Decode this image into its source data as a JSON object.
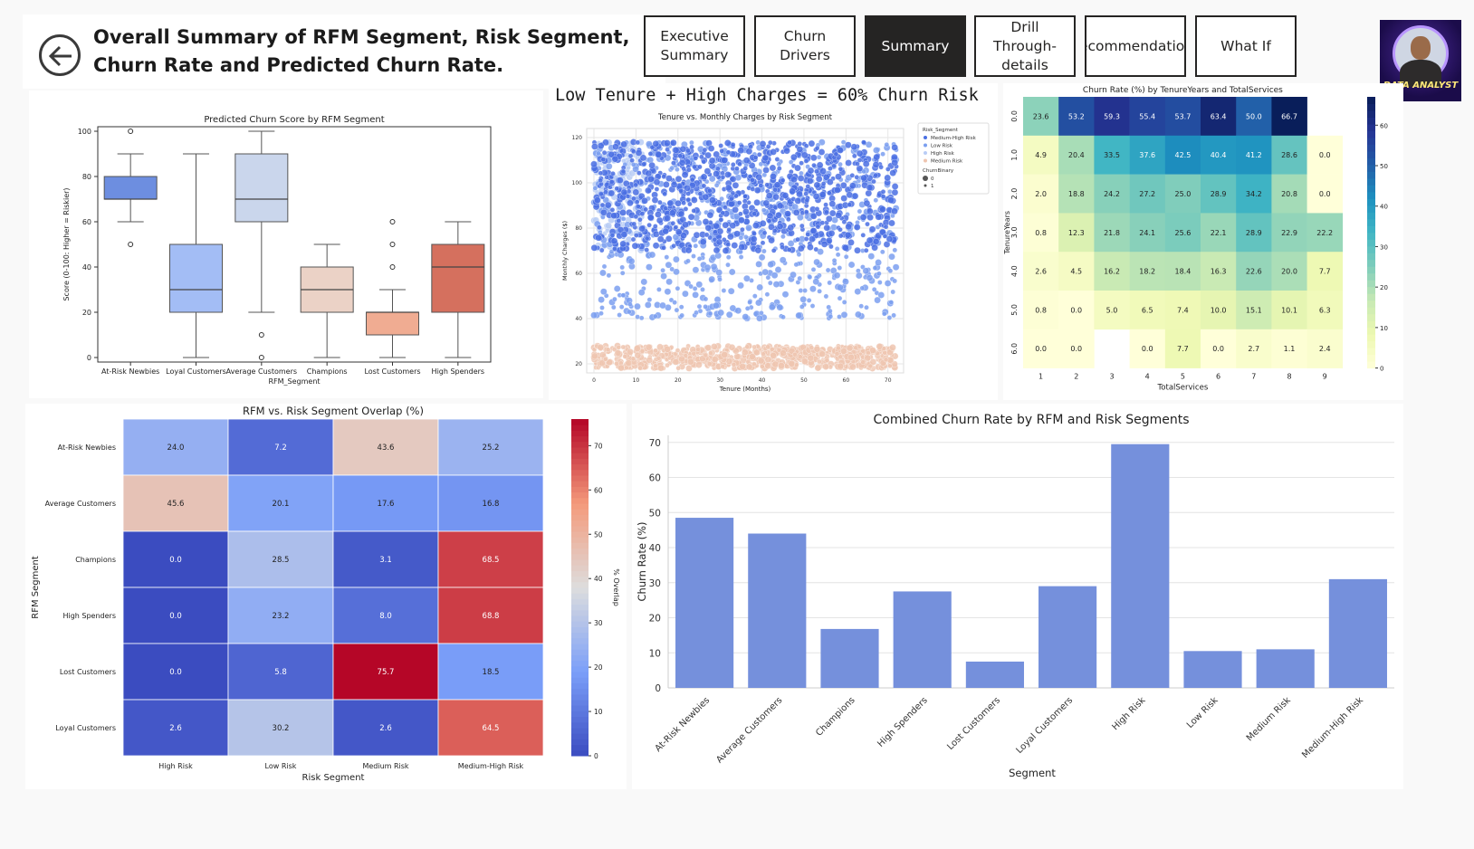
{
  "header": {
    "title": "Overall Summary of RFM Segment, Risk Segment, Churn Rate and Predicted Churn Rate.",
    "back_icon": "arrow-left-circle-icon"
  },
  "nav": {
    "buttons": [
      {
        "label": "Executive Summary",
        "active": false
      },
      {
        "label": "Churn Drivers",
        "active": false
      },
      {
        "label": "Summary",
        "active": true
      },
      {
        "label": "Drill Through-details",
        "active": false
      },
      {
        "label": "Recommendations",
        "active": false
      },
      {
        "label": "What If",
        "active": false
      }
    ]
  },
  "avatar": {
    "caption": "DATA ANALYST"
  },
  "scatter_heading": "Low Tenure + High Charges = 60% Churn Risk",
  "chart_data": [
    {
      "id": "boxplot",
      "type": "box",
      "title": "Predicted Churn Score by RFM Segment",
      "xlabel": "RFM_Segment",
      "ylabel": "Score (0-100: Higher = Riskier)",
      "ylim": [
        0,
        100
      ],
      "yticks": [
        0,
        20,
        40,
        60,
        80,
        100
      ],
      "boxes": [
        {
          "category": "At-Risk Newbies",
          "min": 60,
          "q1": 70,
          "median": 70,
          "q3": 80,
          "max": 90,
          "outliers": [
            100,
            50
          ],
          "color": "#6d8ee0"
        },
        {
          "category": "Loyal Customers",
          "min": 0,
          "q1": 20,
          "median": 30,
          "q3": 50,
          "max": 90,
          "outliers": [],
          "color": "#a3bdf5"
        },
        {
          "category": "Average Customers",
          "min": 20,
          "q1": 60,
          "median": 70,
          "q3": 90,
          "max": 100,
          "outliers": [
            10,
            0
          ],
          "color": "#cad6ec"
        },
        {
          "category": "Champions",
          "min": 0,
          "q1": 20,
          "median": 30,
          "q3": 40,
          "max": 50,
          "outliers": [],
          "color": "#ebd2c6"
        },
        {
          "category": "Lost Customers",
          "min": 0,
          "q1": 10,
          "median": 20,
          "q3": 20,
          "max": 30,
          "outliers": [
            40,
            50,
            60
          ],
          "color": "#f0ac92"
        },
        {
          "category": "High Spenders",
          "min": 0,
          "q1": 20,
          "median": 40,
          "q3": 50,
          "max": 60,
          "outliers": [],
          "color": "#d5705e"
        }
      ]
    },
    {
      "id": "scatter",
      "type": "scatter",
      "title": "Tenure vs. Monthly Charges by Risk Segment",
      "xlabel": "Tenure (Months)",
      "ylabel": "Monthly Charges ($)",
      "xlim": [
        0,
        72
      ],
      "ylim": [
        20,
        120
      ],
      "xticks": [
        0,
        10,
        20,
        30,
        40,
        50,
        60,
        70
      ],
      "yticks": [
        20,
        40,
        60,
        80,
        100,
        120
      ],
      "grid": true,
      "legend_position": "top-right",
      "legend": {
        "title": "Risk_Segment",
        "items": [
          {
            "name": "Medium-High Risk",
            "color": "#4a6fe3"
          },
          {
            "name": "Low Risk",
            "color": "#7b9ff0"
          },
          {
            "name": "High Risk",
            "color": "#b9cdf5"
          },
          {
            "name": "Medium Risk",
            "color": "#efc5b0"
          }
        ],
        "size_title": "ChurnBinary",
        "size_items": [
          "0",
          "1"
        ]
      },
      "series": [
        {
          "name": "Medium-High Risk",
          "x_range": [
            0,
            72
          ],
          "y_range": [
            70,
            118
          ],
          "points": 900
        },
        {
          "name": "Low Risk",
          "x_range": [
            0,
            72
          ],
          "y_range": [
            40,
            118
          ],
          "points": 700
        },
        {
          "name": "High Risk",
          "x_range": [
            0,
            12
          ],
          "y_range": [
            70,
            118
          ],
          "points": 180
        },
        {
          "name": "Medium Risk",
          "x_range": [
            0,
            72
          ],
          "y_range": [
            18,
            28
          ],
          "points": 700
        }
      ]
    },
    {
      "id": "tenure-heatmap",
      "type": "heatmap",
      "title": "Churn Rate (%) by TenureYears and TotalServices",
      "xlabel": "TotalServices",
      "ylabel": "TenureYears",
      "x": [
        "1",
        "2",
        "3",
        "4",
        "5",
        "6",
        "7",
        "8",
        "9"
      ],
      "y": [
        "0.0",
        "1.0",
        "2.0",
        "3.0",
        "4.0",
        "5.0",
        "6.0"
      ],
      "values": [
        [
          23.6,
          53.2,
          59.3,
          55.4,
          53.7,
          63.4,
          50.0,
          66.7,
          null
        ],
        [
          4.9,
          20.4,
          33.5,
          37.6,
          42.5,
          40.4,
          41.2,
          28.6,
          0.0
        ],
        [
          2.0,
          18.8,
          24.2,
          27.2,
          25.0,
          28.9,
          34.2,
          20.8,
          0.0
        ],
        [
          0.8,
          12.3,
          21.8,
          24.1,
          25.6,
          22.1,
          28.9,
          22.9,
          22.2
        ],
        [
          2.6,
          4.5,
          16.2,
          18.2,
          18.4,
          16.3,
          22.6,
          20.0,
          7.7
        ],
        [
          0.8,
          0.0,
          5.0,
          6.5,
          7.4,
          10.0,
          15.1,
          10.1,
          6.3
        ],
        [
          0.0,
          0.0,
          null,
          0.0,
          7.7,
          0.0,
          2.7,
          1.1,
          2.4
        ]
      ],
      "colorbar_ticks": [
        0,
        10,
        20,
        30,
        40,
        50,
        60
      ],
      "vmax": 67,
      "colormap": "YlGnBu"
    },
    {
      "id": "overlap-heatmap",
      "type": "heatmap",
      "title": "RFM vs. Risk Segment Overlap (%)",
      "xlabel": "Risk Segment",
      "ylabel": "RFM Segment",
      "x": [
        "High Risk",
        "Low Risk",
        "Medium Risk",
        "Medium-High Risk"
      ],
      "y": [
        "At-Risk Newbies",
        "Average Customers",
        "Champions",
        "High Spenders",
        "Lost Customers",
        "Loyal Customers"
      ],
      "values": [
        [
          24.0,
          7.2,
          43.6,
          25.2
        ],
        [
          45.6,
          20.1,
          17.6,
          16.8
        ],
        [
          0.0,
          28.5,
          3.1,
          68.5
        ],
        [
          0.0,
          23.2,
          8.0,
          68.8
        ],
        [
          0.0,
          5.8,
          75.7,
          18.5
        ],
        [
          2.6,
          30.2,
          2.6,
          64.5
        ]
      ],
      "colorbar_label": "% Overlap",
      "colorbar_ticks": [
        0,
        10,
        20,
        30,
        40,
        50,
        60,
        70
      ],
      "vmax": 76,
      "colormap": "coolwarm"
    },
    {
      "id": "bar",
      "type": "bar",
      "title": "Combined Churn Rate by RFM and Risk Segments",
      "xlabel": "Segment",
      "ylabel": "Churn Rate (%)",
      "ylim": [
        0,
        72
      ],
      "yticks": [
        0,
        10,
        20,
        30,
        40,
        50,
        60,
        70
      ],
      "grid": true,
      "color": "#7590dc",
      "categories": [
        "At-Risk Newbies",
        "Average Customers",
        "Champions",
        "High Spenders",
        "Lost Customers",
        "Loyal Customers",
        "High Risk",
        "Low Risk",
        "Medium Risk",
        "Medium-High Risk"
      ],
      "values": [
        48.5,
        44.0,
        16.8,
        27.5,
        7.5,
        29.0,
        69.5,
        10.5,
        11.0,
        31.0
      ]
    }
  ]
}
